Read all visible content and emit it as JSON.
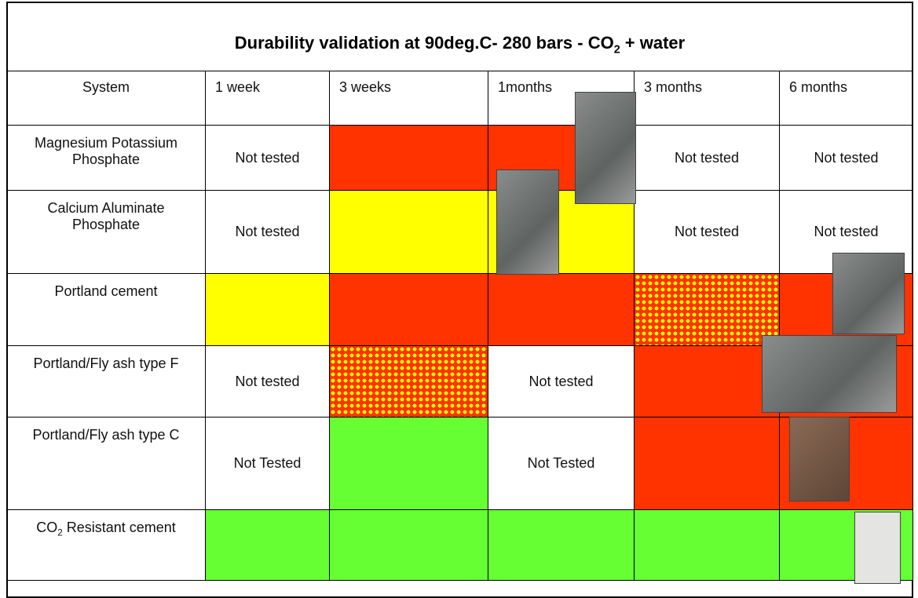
{
  "title": {
    "text": "Durability validation at  90deg.C- 280 bars - CO",
    "sub": "2",
    "after": " + water"
  },
  "table": {
    "header": [
      "System",
      "1 week",
      "3 weeks",
      "1months",
      "3 months",
      "6 months"
    ],
    "rows": [
      [
        {
          "text": "Magnesium Potassium Phosphate"
        },
        {
          "text": "Not tested"
        },
        {
          "fill": "#ff3300"
        },
        {
          "fill": "#ff3300"
        },
        {
          "text": "Not tested"
        },
        {
          "text": "Not tested"
        }
      ],
      [
        {
          "text": "Calcium Aluminate Phosphate"
        },
        {
          "text": "Not tested"
        },
        {
          "fill": "#ffff00"
        },
        {
          "fill": "#ffff00"
        },
        {
          "text": "Not tested"
        },
        {
          "text": "Not tested"
        }
      ],
      [
        {
          "text": "Portland cement"
        },
        {
          "fill": "#ffff00"
        },
        {
          "fill": "#ff3300"
        },
        {
          "fill": "#ff3300"
        },
        {
          "fill": "#ff3300",
          "dots": "#ffff00"
        },
        {
          "fill": "#ff3300"
        }
      ],
      [
        {
          "text": "Portland/Fly ash type F"
        },
        {
          "text": "Not tested"
        },
        {
          "fill": "#ff3300",
          "dots": "#ffff00"
        },
        {
          "text": "Not tested"
        },
        {
          "fill": "#ff3300"
        },
        {
          "fill": "#ff3300"
        }
      ],
      [
        {
          "text": "Portland/Fly ash type C"
        },
        {
          "text": "Not Tested"
        },
        {
          "fill": "#66ff33"
        },
        {
          "text": "Not Tested"
        },
        {
          "fill": "#ff3300"
        },
        {
          "fill": "#ff3300"
        }
      ],
      [
        {
          "text": "CO",
          "sub": "2",
          "after": " Resistant cement"
        },
        {
          "fill": "#66ff33"
        },
        {
          "fill": "#66ff33"
        },
        {
          "fill": "#66ff33"
        },
        {
          "fill": "#66ff33"
        },
        {
          "fill": "#66ff33"
        }
      ]
    ]
  }
}
